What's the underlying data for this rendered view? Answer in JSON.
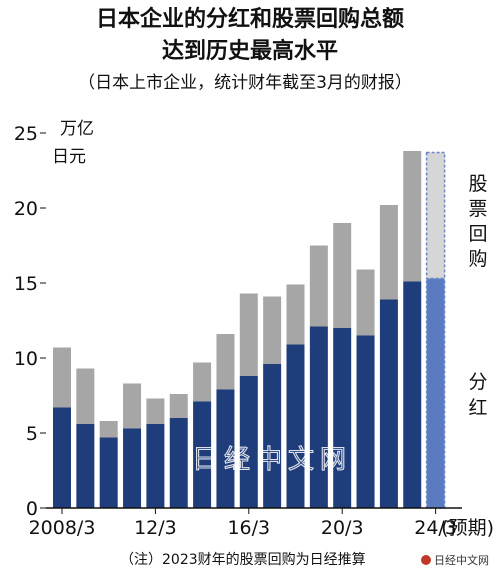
{
  "title_line1": "日本企业的分红和股票回购总额",
  "title_line2": "达到历史最高水平",
  "subtitle": "（日本上市企业，统计财年截至3月的财报）",
  "unit_line1": "万亿",
  "unit_line2": "日元",
  "note": "（注）2023财年的股票回购为日经推算",
  "watermark": "日经中文网",
  "credit": "日经中文网",
  "colors": {
    "dividend": "#1f3d7a",
    "buyback": "#a6a6a6",
    "dividend_forecast": "#5b7bc0",
    "buyback_forecast": "#d6d6d6",
    "forecast_border": "#6b86c2"
  },
  "chart_data": {
    "type": "bar",
    "stacked": true,
    "x": [
      "2008/3",
      "2009/3",
      "2010/3",
      "2011/3",
      "2012/3",
      "2013/3",
      "2014/3",
      "2015/3",
      "2016/3",
      "2017/3",
      "2018/3",
      "2019/3",
      "2020/3",
      "2021/3",
      "2022/3",
      "2023/3",
      "2024/3"
    ],
    "x_tick_labels": [
      "2008/3",
      "12/3",
      "16/3",
      "20/3",
      "24/3"
    ],
    "x_tick_indices": [
      0,
      4,
      8,
      12,
      16
    ],
    "forecast_label": "(预期)",
    "series": [
      {
        "name": "分红",
        "values": [
          6.7,
          5.6,
          4.7,
          5.3,
          5.6,
          6.0,
          7.1,
          7.9,
          8.8,
          9.6,
          10.9,
          12.1,
          12.0,
          11.5,
          13.9,
          15.1,
          15.3
        ]
      },
      {
        "name": "股票回购",
        "values": [
          4.0,
          3.7,
          1.1,
          3.0,
          1.7,
          1.6,
          2.6,
          3.7,
          5.5,
          4.5,
          4.0,
          5.4,
          7.0,
          4.4,
          6.3,
          8.7,
          8.4
        ]
      }
    ],
    "forecast_indices": [
      16
    ],
    "ylim": [
      0,
      25
    ],
    "yticks": [
      0,
      5,
      10,
      15,
      20,
      25
    ],
    "ylabel": "万亿日元",
    "legend": [
      "股票回购",
      "分红"
    ],
    "legend_position": "right, beside bars"
  }
}
